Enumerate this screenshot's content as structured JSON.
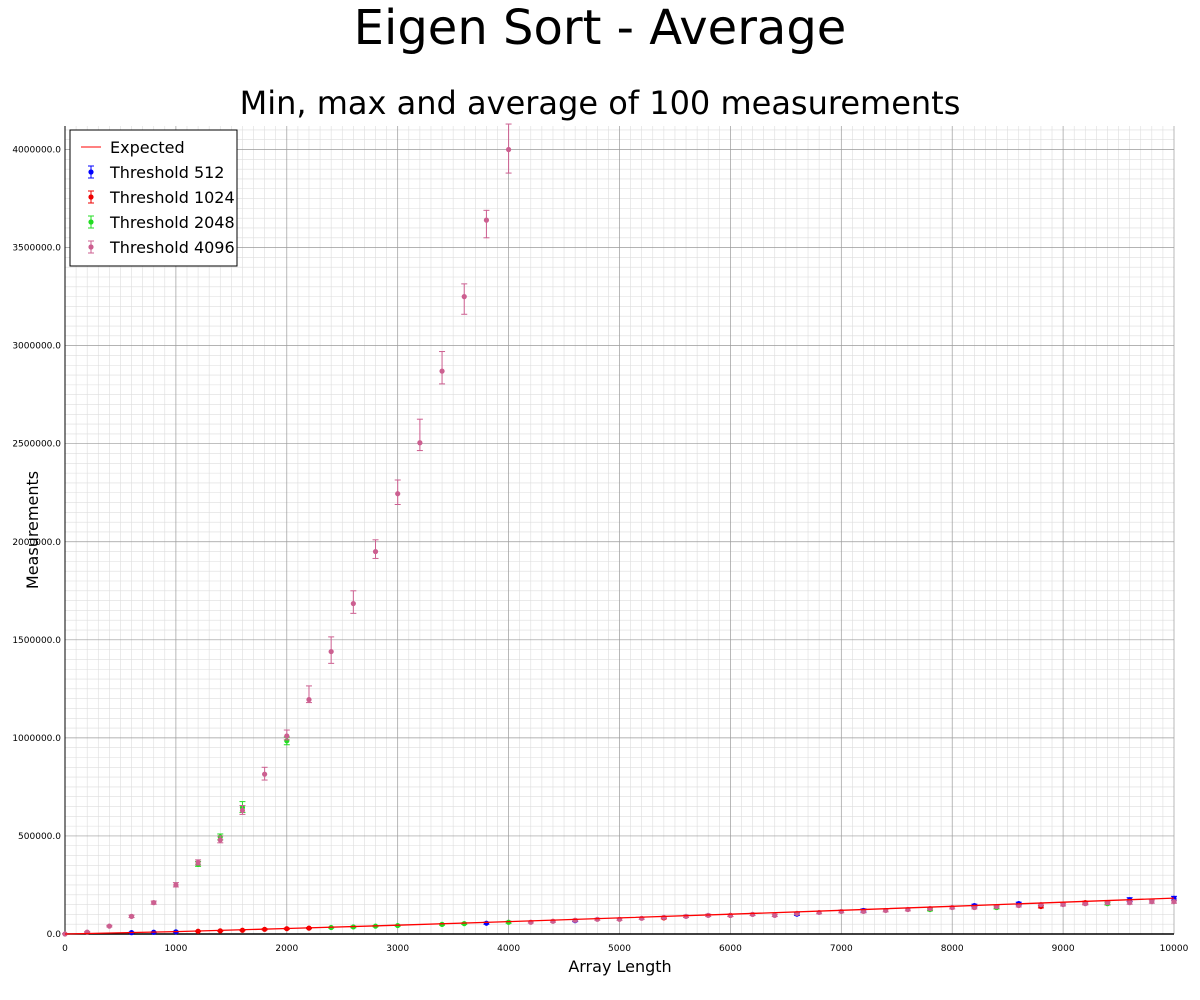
{
  "colors": {
    "expected": "#ff0000",
    "threshold_512": "#0000ff",
    "threshold_1024": "#ee0000",
    "threshold_2048": "#22dd22",
    "threshold_4096": "#cc5f90",
    "grid_major": "#9a9a9a",
    "grid_minor": "#dddddd"
  },
  "chart_data": {
    "type": "scatter",
    "title": "Eigen Sort - Average",
    "subtitle": "Min, max and average of 100 measurements",
    "xlabel": "Array Length",
    "ylabel": "Measurements",
    "xlim": [
      0,
      10000
    ],
    "ylim": [
      0,
      4120000
    ],
    "grid": true,
    "legend_position": "top-left",
    "x_ticks": [
      0,
      1000,
      2000,
      3000,
      4000,
      5000,
      6000,
      7000,
      8000,
      9000,
      10000
    ],
    "x_tick_labels": [
      "0",
      "1000",
      "2000",
      "3000",
      "4000",
      "5000",
      "6000",
      "7000",
      "8000",
      "9000",
      "10000"
    ],
    "y_ticks": [
      0,
      500000,
      1000000,
      1500000,
      2000000,
      2500000,
      3000000,
      3500000,
      4000000
    ],
    "y_tick_labels": [
      "0.0",
      "500000.0",
      "1000000.0",
      "1500000.0",
      "2000000.0",
      "2500000.0",
      "3000000.0",
      "3500000.0",
      "4000000.0"
    ],
    "legend": [
      "Expected",
      "Threshold 512",
      "Threshold 1024",
      "Threshold 2048",
      "Threshold 4096"
    ],
    "series": [
      {
        "name": "Expected",
        "kind": "line",
        "x": [
          0,
          1000,
          2000,
          3000,
          4000,
          5000,
          6000,
          7000,
          8000,
          9000,
          10000
        ],
        "y": [
          0,
          12000,
          28000,
          45000,
          63000,
          82000,
          101000,
          121000,
          141000,
          162000,
          183000
        ]
      },
      {
        "name": "Threshold 512",
        "kind": "errorbar",
        "points": [
          [
            600,
            7000,
            5000,
            9000
          ],
          [
            800,
            9000,
            7000,
            11000
          ],
          [
            1000,
            11000,
            9000,
            14000
          ],
          [
            3800,
            55000,
            50000,
            60000
          ],
          [
            4600,
            68000,
            63000,
            73000
          ],
          [
            6600,
            101000,
            95000,
            107000
          ],
          [
            7200,
            120000,
            112000,
            128000
          ],
          [
            8200,
            145000,
            138000,
            152000
          ],
          [
            8600,
            155000,
            148000,
            162000
          ],
          [
            9600,
            175000,
            165000,
            185000
          ],
          [
            10000,
            182000,
            172000,
            192000
          ]
        ]
      },
      {
        "name": "Threshold 1024",
        "kind": "errorbar",
        "points": [
          [
            1200,
            14000,
            12000,
            16000
          ],
          [
            1400,
            16000,
            14000,
            18000
          ],
          [
            1600,
            19000,
            17000,
            21000
          ],
          [
            1800,
            24000,
            21000,
            27000
          ],
          [
            2000,
            27000,
            24000,
            30000
          ],
          [
            2200,
            30000,
            27000,
            33000
          ],
          [
            5400,
            82000,
            77000,
            87000
          ],
          [
            6000,
            95000,
            89000,
            101000
          ],
          [
            8800,
            140000,
            133000,
            147000
          ],
          [
            9200,
            160000,
            153000,
            167000
          ]
        ]
      },
      {
        "name": "Threshold 2048",
        "kind": "errorbar",
        "points": [
          [
            1200,
            355000,
            345000,
            370000
          ],
          [
            1400,
            495000,
            480000,
            510000
          ],
          [
            1600,
            645000,
            620000,
            675000
          ],
          [
            2000,
            985000,
            965000,
            1005000
          ],
          [
            2400,
            33000,
            30000,
            36000
          ],
          [
            2600,
            36000,
            32000,
            40000
          ],
          [
            2800,
            40000,
            37000,
            43000
          ],
          [
            3000,
            43000,
            40000,
            46000
          ],
          [
            3400,
            49000,
            45000,
            53000
          ],
          [
            3600,
            53000,
            49000,
            57000
          ],
          [
            4000,
            60000,
            55000,
            65000
          ],
          [
            7800,
            125000,
            118000,
            132000
          ],
          [
            8400,
            135000,
            128000,
            142000
          ],
          [
            9400,
            155000,
            148000,
            162000
          ]
        ]
      },
      {
        "name": "Threshold 4096",
        "kind": "errorbar",
        "points": [
          [
            0,
            0,
            0,
            2000
          ],
          [
            200,
            10000,
            8000,
            13000
          ],
          [
            400,
            40000,
            36000,
            44000
          ],
          [
            600,
            90000,
            84000,
            96000
          ],
          [
            800,
            160000,
            152000,
            168000
          ],
          [
            1000,
            250000,
            240000,
            262000
          ],
          [
            1200,
            365000,
            352000,
            378000
          ],
          [
            1400,
            480000,
            465000,
            500000
          ],
          [
            1600,
            630000,
            610000,
            655000
          ],
          [
            1800,
            815000,
            785000,
            850000
          ],
          [
            2000,
            1010000,
            990000,
            1040000
          ],
          [
            2200,
            1195000,
            1180000,
            1265000
          ],
          [
            2400,
            1440000,
            1380000,
            1515000
          ],
          [
            2600,
            1685000,
            1635000,
            1750000
          ],
          [
            2800,
            1950000,
            1915000,
            2010000
          ],
          [
            3000,
            2245000,
            2190000,
            2315000
          ],
          [
            3200,
            2505000,
            2465000,
            2625000
          ],
          [
            3400,
            2870000,
            2805000,
            2970000
          ],
          [
            3600,
            3250000,
            3160000,
            3315000
          ],
          [
            3800,
            3640000,
            3550000,
            3690000
          ],
          [
            4000,
            4000000,
            3880000,
            4130000
          ],
          [
            4200,
            60000,
            56000,
            65000
          ],
          [
            4400,
            65000,
            60000,
            70000
          ],
          [
            4600,
            70000,
            65000,
            75000
          ],
          [
            4800,
            75000,
            70000,
            80000
          ],
          [
            5000,
            75000,
            70000,
            80000
          ],
          [
            5200,
            80000,
            75000,
            85000
          ],
          [
            5400,
            85000,
            80000,
            90000
          ],
          [
            5600,
            90000,
            84000,
            96000
          ],
          [
            5800,
            95000,
            89000,
            101000
          ],
          [
            6000,
            95000,
            89000,
            101000
          ],
          [
            6200,
            100000,
            94000,
            106000
          ],
          [
            6400,
            95000,
            89000,
            101000
          ],
          [
            6600,
            105000,
            99000,
            111000
          ],
          [
            6800,
            110000,
            103000,
            117000
          ],
          [
            7000,
            115000,
            108000,
            122000
          ],
          [
            7200,
            115000,
            108000,
            122000
          ],
          [
            7400,
            120000,
            113000,
            127000
          ],
          [
            7600,
            125000,
            118000,
            132000
          ],
          [
            7800,
            130000,
            123000,
            137000
          ],
          [
            8000,
            135000,
            128000,
            142000
          ],
          [
            8200,
            135000,
            128000,
            142000
          ],
          [
            8400,
            140000,
            133000,
            147000
          ],
          [
            8600,
            145000,
            138000,
            152000
          ],
          [
            8800,
            150000,
            143000,
            157000
          ],
          [
            9000,
            150000,
            143000,
            157000
          ],
          [
            9200,
            155000,
            148000,
            162000
          ],
          [
            9400,
            160000,
            152000,
            168000
          ],
          [
            9600,
            160000,
            152000,
            168000
          ],
          [
            9800,
            165000,
            157000,
            173000
          ],
          [
            10000,
            165000,
            157000,
            173000
          ]
        ]
      }
    ]
  }
}
